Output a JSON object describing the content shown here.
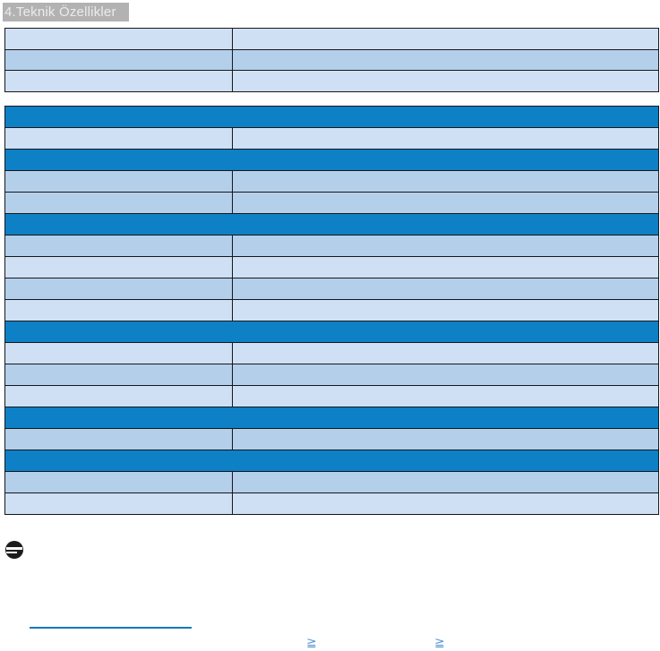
{
  "page": {
    "title": "4.Teknik Özellikler"
  },
  "colors": {
    "title_box_bg": "#b2b2b2",
    "title_text": "#ececec",
    "section_header_bg": "#0e80c6",
    "row_light": "#cfe0f4",
    "row_medium": "#b4cfea",
    "table_border": "#17171c",
    "link_blue": "#1377bd",
    "glyph_blue": "#5c9bd6",
    "note_icon_bg": "#1c1c1c"
  },
  "top_table": {
    "rows": [
      {
        "type": "light",
        "label": "",
        "value": ""
      },
      {
        "type": "medium",
        "label": "",
        "value": ""
      },
      {
        "type": "light",
        "label": "",
        "value": ""
      }
    ]
  },
  "main_table": {
    "rows": [
      {
        "type": "section",
        "text": ""
      },
      {
        "type": "light",
        "label": "",
        "value": ""
      },
      {
        "type": "section",
        "text": ""
      },
      {
        "type": "medium",
        "label": "",
        "value": ""
      },
      {
        "type": "medium",
        "label": "",
        "value": ""
      },
      {
        "type": "section",
        "text": ""
      },
      {
        "type": "medium",
        "label": "",
        "value": ""
      },
      {
        "type": "light",
        "label": "",
        "value": ""
      },
      {
        "type": "medium",
        "label": "",
        "value": ""
      },
      {
        "type": "light",
        "label": "",
        "value": ""
      },
      {
        "type": "section",
        "text": ""
      },
      {
        "type": "light",
        "label": "",
        "value": ""
      },
      {
        "type": "medium",
        "label": "",
        "value": ""
      },
      {
        "type": "light",
        "label": "",
        "value": ""
      },
      {
        "type": "section",
        "text": ""
      },
      {
        "type": "medium",
        "label": "",
        "value": ""
      },
      {
        "type": "section",
        "text": ""
      },
      {
        "type": "medium",
        "label": "",
        "value": ""
      },
      {
        "type": "light",
        "label": "",
        "value": ""
      }
    ]
  },
  "footer": {
    "link_text": "",
    "glyphs": [
      "≧",
      "≧"
    ]
  }
}
